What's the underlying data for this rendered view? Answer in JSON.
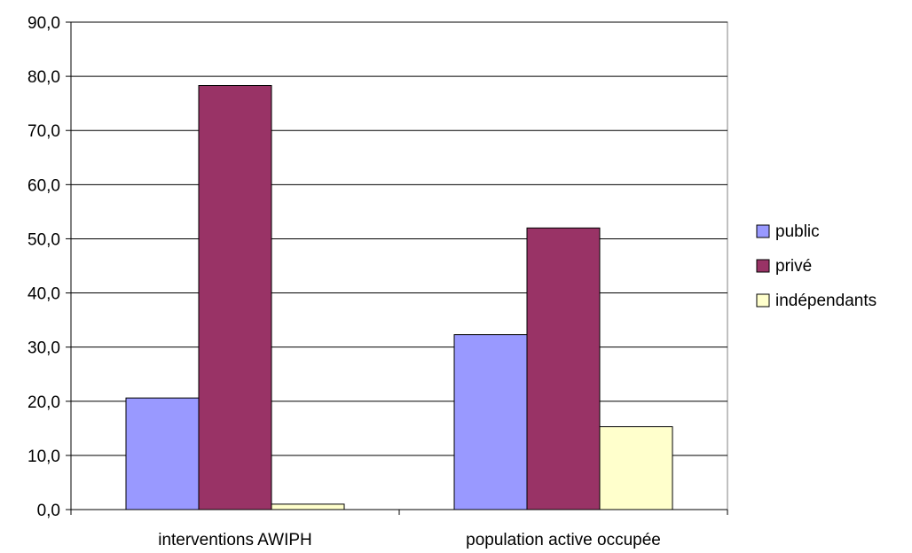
{
  "chart_data": {
    "type": "bar",
    "categories": [
      "interventions AWIPH",
      "population active occupée"
    ],
    "series": [
      {
        "name": "public",
        "values": [
          20.6,
          32.3
        ],
        "color": "#9999ff"
      },
      {
        "name": "privé",
        "values": [
          78.3,
          52.0
        ],
        "color": "#993366"
      },
      {
        "name": "indépendants",
        "values": [
          1.0,
          15.3
        ],
        "color": "#ffffcc"
      }
    ],
    "ylim": [
      0,
      90
    ],
    "ytick_labels": [
      "0,0",
      "10,0",
      "20,0",
      "30,0",
      "40,0",
      "50,0",
      "60,0",
      "70,0",
      "80,0",
      "90,0"
    ],
    "grid": true,
    "legend_position": "right",
    "title": "",
    "xlabel": "",
    "ylabel": ""
  }
}
